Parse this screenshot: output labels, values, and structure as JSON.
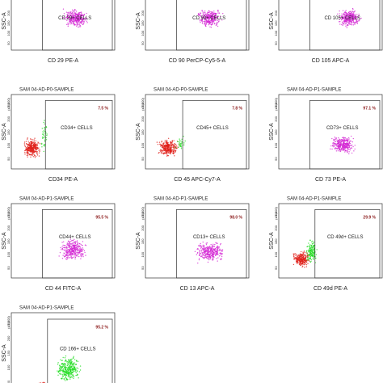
{
  "figure": {
    "y_label": "SSC-A",
    "y_unit": "(x 1,000)",
    "yticks": [
      "250",
      "200",
      "150",
      "100",
      "50"
    ],
    "panels": [
      {
        "gate_label": "CD 29+ CELLS",
        "x_label": "CD 29 PE-A"
      },
      {
        "gate_label": "CD 90+ CELLS",
        "x_label": "CD 90 PerCP-Cy5-5-A"
      },
      {
        "gate_label": "CD 105+ CELLS",
        "x_label": "CD 105 APC-A"
      },
      {
        "title": "SAM 04-AD-P0-SAMPLE",
        "percent": "7.5 %",
        "gate_label": "CD34+ CELLS",
        "x_label": "CD34 PE-A"
      },
      {
        "title": "SAM 04-AD-P0-SAMPLE",
        "percent": "7.8 %",
        "gate_label": "CD45+ CELLS",
        "x_label": "CD 45 APC-Cy7-A"
      },
      {
        "title": "SAM 04-AD-P1-SAMPLE",
        "percent": "97.1 %",
        "gate_label": "CD73+ CELLS",
        "x_label": "CD 73 PE-A"
      },
      {
        "title": "SAM 04-AD-P1-SAMPLE",
        "percent": "95.5 %",
        "gate_label": "CD44+ CELLS",
        "x_label": "CD 44 FITC-A"
      },
      {
        "title": "SAM 04-AD-P1-SAMPLE",
        "percent": "98.0 %",
        "gate_label": "CD13+ CELLS",
        "x_label": "CD 13 APC-A"
      },
      {
        "title": "SAM 04-AD-P1-SAMPLE",
        "percent": "29.9 %",
        "gate_label": "CD 49d+ CELLS",
        "x_label": "CD 49d PE-A"
      },
      {
        "title": "SAM 04-AD-P1-SAMPLE",
        "percent": "95.2 %",
        "gate_label": "CD 166+ CELLS"
      }
    ]
  }
}
